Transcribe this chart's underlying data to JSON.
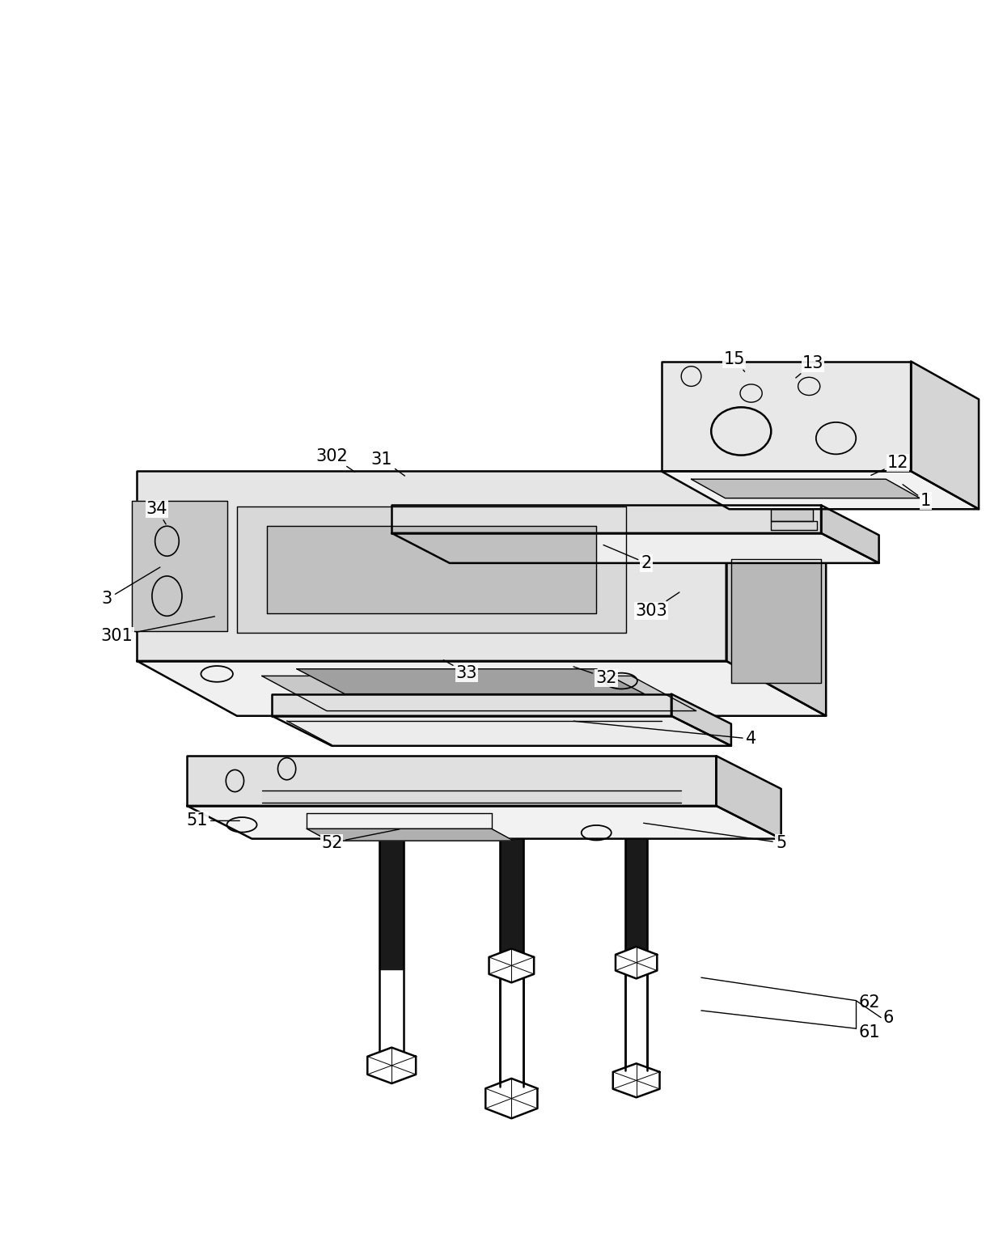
{
  "bg_color": "#ffffff",
  "fig_width": 12.4,
  "fig_height": 15.35,
  "lw_main": 1.8,
  "lw_thin": 1.0,
  "fill_top": "#f5f5f5",
  "fill_front": "#e8e8e8",
  "fill_right": "#d0d0d0",
  "fill_inner": "#b8b8b8",
  "fill_dark": "#1a1a1a",
  "fill_white": "#ffffff"
}
